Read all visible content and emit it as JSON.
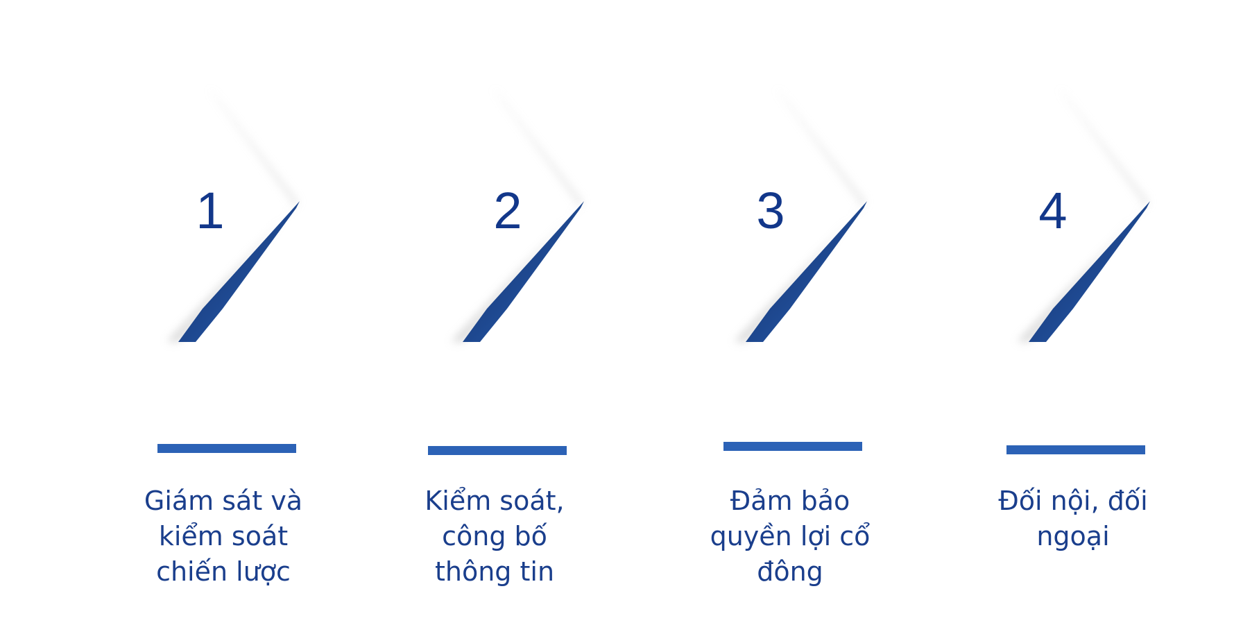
{
  "colors": {
    "number_text": "#12378a",
    "label_text": "#1a3e8c",
    "accent_blue": "#2c62b6",
    "accent_dark": "#0f2c66",
    "background": "#ffffff"
  },
  "steps": [
    {
      "number": "1",
      "label": "Giám sát và kiểm soát chiến lược"
    },
    {
      "number": "2",
      "label": "Kiểm soát, công bố thông tin"
    },
    {
      "number": "3",
      "label": "Đảm bảo quyền lợi cổ đông"
    },
    {
      "number": "4",
      "label": "Đối nội, đối ngoại"
    }
  ]
}
